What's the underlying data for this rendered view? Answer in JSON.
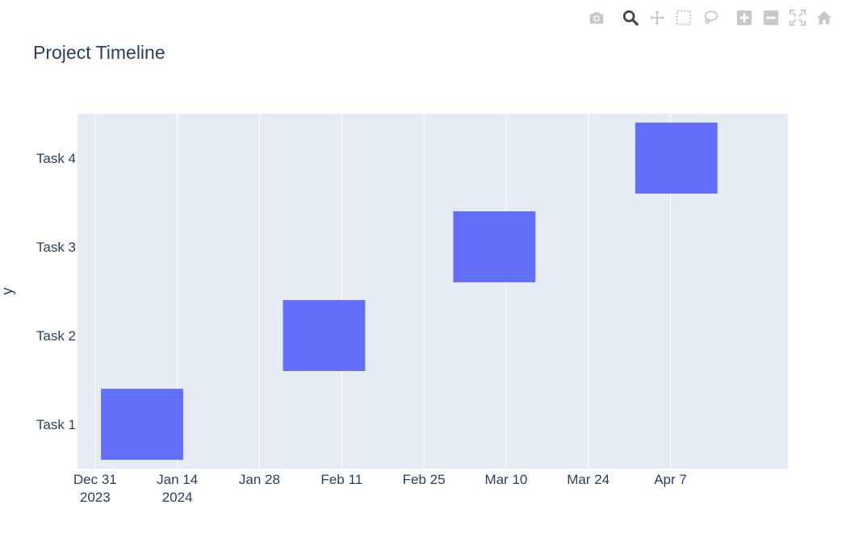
{
  "modebar": {
    "buttons": [
      {
        "name": "camera-icon",
        "title": "Download plot as a png"
      },
      {
        "name": "zoom-icon",
        "title": "Zoom"
      },
      {
        "name": "pan-icon",
        "title": "Pan"
      },
      {
        "name": "box-select-icon",
        "title": "Box Select"
      },
      {
        "name": "lasso-select-icon",
        "title": "Lasso Select"
      },
      {
        "name": "zoom-in-icon",
        "title": "Zoom in"
      },
      {
        "name": "zoom-out-icon",
        "title": "Zoom out"
      },
      {
        "name": "autoscale-icon",
        "title": "Autoscale"
      },
      {
        "name": "reset-axes-icon",
        "title": "Reset axes"
      }
    ],
    "active_color": "#444444",
    "inactive_color": "#c8c8c8"
  },
  "chart_data": {
    "type": "timeline",
    "title": "Project Timeline",
    "xlabel": "",
    "ylabel": "y",
    "x_range": [
      "2023-12-28",
      "2024-04-27"
    ],
    "x_ticks": [
      {
        "date": "2023-12-31",
        "label": "Dec 31",
        "sublabel": "2023"
      },
      {
        "date": "2024-01-14",
        "label": "Jan 14",
        "sublabel": "2024"
      },
      {
        "date": "2024-01-28",
        "label": "Jan 28",
        "sublabel": ""
      },
      {
        "date": "2024-02-11",
        "label": "Feb 11",
        "sublabel": ""
      },
      {
        "date": "2024-02-25",
        "label": "Feb 25",
        "sublabel": ""
      },
      {
        "date": "2024-03-10",
        "label": "Mar 10",
        "sublabel": ""
      },
      {
        "date": "2024-03-24",
        "label": "Mar 24",
        "sublabel": ""
      },
      {
        "date": "2024-04-07",
        "label": "Apr 7",
        "sublabel": ""
      }
    ],
    "categories": [
      "Task 1",
      "Task 2",
      "Task 3",
      "Task 4"
    ],
    "tasks": [
      {
        "task": "Task 1",
        "start": "2024-01-01",
        "finish": "2024-01-15"
      },
      {
        "task": "Task 2",
        "start": "2024-02-01",
        "finish": "2024-02-15"
      },
      {
        "task": "Task 3",
        "start": "2024-03-01",
        "finish": "2024-03-15"
      },
      {
        "task": "Task 4",
        "start": "2024-04-01",
        "finish": "2024-04-15"
      }
    ],
    "bar_color": "#636efa",
    "plot_bg": "#e5ecf6",
    "grid_color": "#ffffff",
    "grid": true
  }
}
